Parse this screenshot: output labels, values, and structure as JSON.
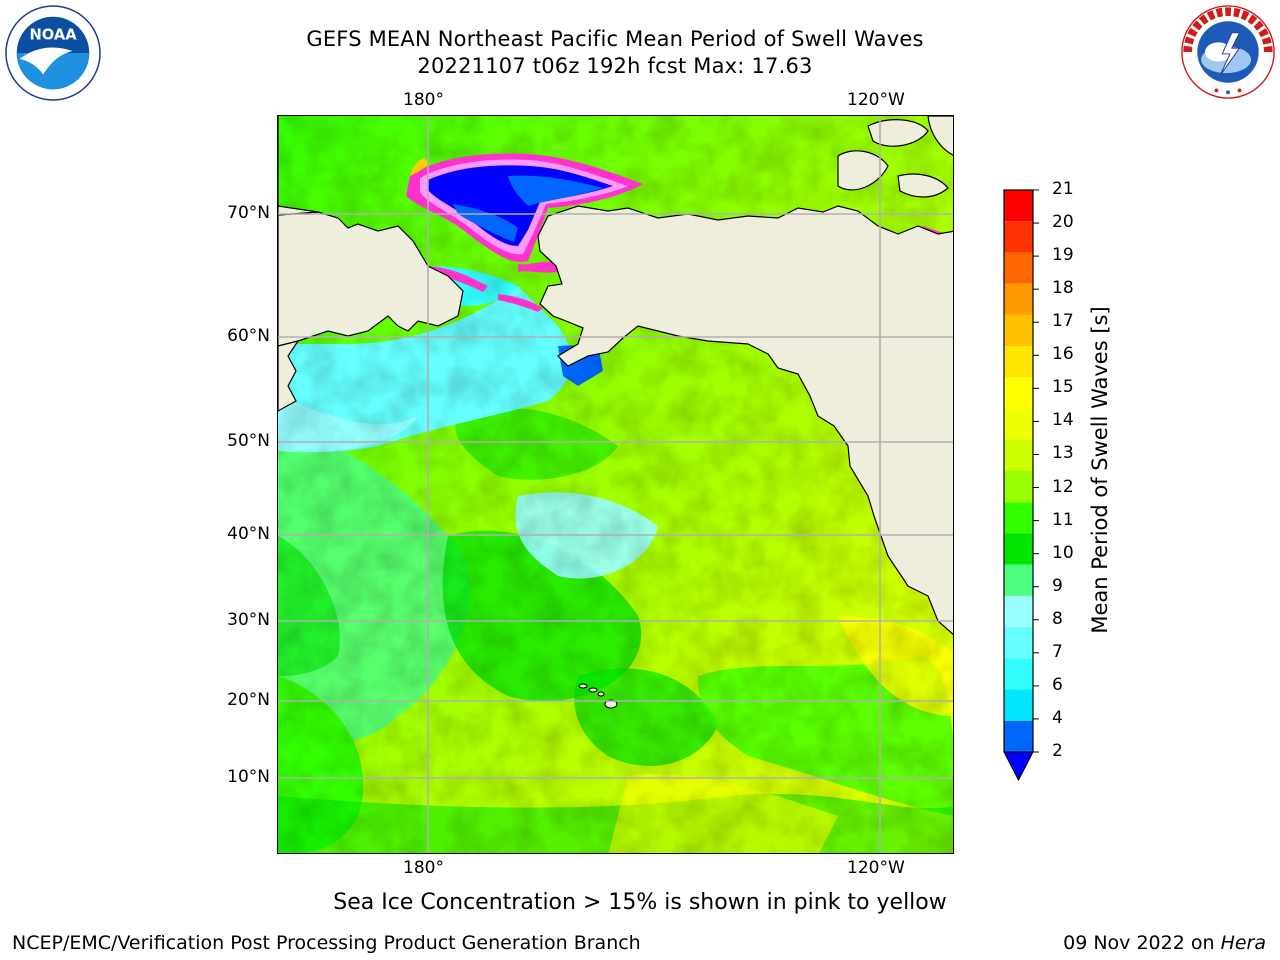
{
  "title": {
    "line1": "GEFS MEAN Northeast Pacific Mean Period of Swell Waves",
    "line2": "20221107 t06z 192h fcst   Max: 17.63"
  },
  "logos": {
    "left": {
      "name": "NOAA",
      "text": "NOAA",
      "ring_text": "NATIONAL OCEANIC AND ATMOSPHERIC ADMINISTRATION · U.S. DEPARTMENT OF COMMERCE"
    },
    "right": {
      "name": "National Weather Service",
      "ring_text": "NATIONAL WEATHER SERVICE"
    }
  },
  "map": {
    "region": "Northeast Pacific",
    "lon_ticks_top": [
      "180°",
      "120°W"
    ],
    "lon_ticks_bottom": [
      "180°",
      "120°W"
    ],
    "lat_ticks": [
      "70°N",
      "60°N",
      "50°N",
      "40°N",
      "30°N",
      "20°N",
      "10°N"
    ],
    "land_color": "#efeddc",
    "grid_color": "#b0b0b0",
    "sea_ice_colors": [
      "#ff33cc",
      "#ff99ff",
      "#ffcc00"
    ]
  },
  "colorbar": {
    "title": "Mean Period of Swell Waves [s]",
    "labels": [
      "2",
      "4",
      "6",
      "7",
      "8",
      "9",
      "10",
      "11",
      "12",
      "13",
      "14",
      "15",
      "16",
      "17",
      "18",
      "19",
      "20",
      "21"
    ],
    "colors": [
      "#0066ff",
      "#00e6ff",
      "#33ffff",
      "#66ffff",
      "#99ffff",
      "#4dff80",
      "#00e600",
      "#33ff00",
      "#99ff00",
      "#ccff00",
      "#eeff00",
      "#ffff00",
      "#ffe600",
      "#ffc000",
      "#ff9900",
      "#ff6600",
      "#ff3300",
      "#ff0000"
    ],
    "under_color": "#0000ff"
  },
  "caption": "Sea Ice Concentration > 15% is shown in pink to yellow",
  "footer": {
    "left": "NCEP/EMC/Verification Post Processing Product Generation Branch",
    "right_date": "09 Nov 2022 on ",
    "right_host": "Hera"
  }
}
